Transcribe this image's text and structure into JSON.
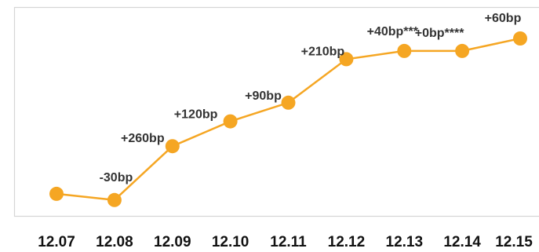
{
  "chart_data": {
    "type": "line",
    "categories": [
      "12.07",
      "12.08",
      "12.09",
      "12.10",
      "12.11",
      "12.12",
      "12.13",
      "12.14",
      "12.15"
    ],
    "values": [
      0,
      -30,
      230,
      350,
      440,
      650,
      690,
      690,
      750
    ],
    "data_labels": [
      "",
      "-30bp",
      "+260bp",
      "+120bp",
      "+90bp",
      "+210bp",
      "+40bp***",
      "+0bp****",
      "+60bp"
    ],
    "title": "",
    "xlabel": "",
    "ylabel": "",
    "ylim": [
      -80,
      860
    ],
    "grid": false,
    "legend": "none",
    "colors": {
      "line": "#f5a623",
      "marker": "#f5a623",
      "frame": "#d6d6d6",
      "label": "#333333",
      "tick": "#111111"
    }
  }
}
